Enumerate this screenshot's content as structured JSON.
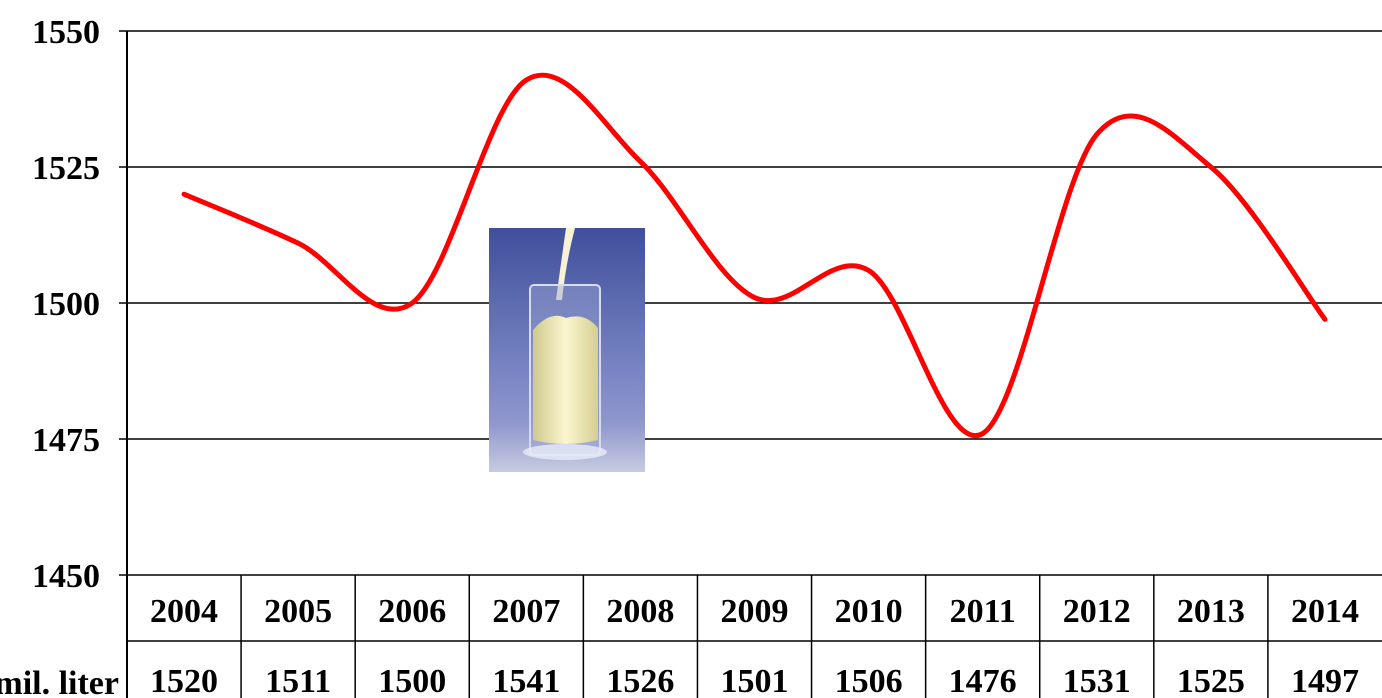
{
  "chart_data": {
    "type": "line",
    "title": "",
    "xlabel": "",
    "ylabel": "",
    "categories": [
      "2004",
      "2005",
      "2006",
      "2007",
      "2008",
      "2009",
      "2010",
      "2011",
      "2012",
      "2013",
      "2014"
    ],
    "series": [
      {
        "name": "",
        "values": [
          1520,
          1511,
          1500,
          1541,
          1526,
          1501,
          1506,
          1476,
          1531,
          1525,
          1497
        ],
        "color": "#ff0000"
      }
    ],
    "table_row_label": "mil. liter",
    "ylim": [
      1450,
      1550
    ],
    "yticks": [
      1450,
      1475,
      1500,
      1525,
      1550
    ],
    "grid": true,
    "legend": "none",
    "smooth": true
  },
  "image": {
    "icon": "milk-glass-icon"
  }
}
